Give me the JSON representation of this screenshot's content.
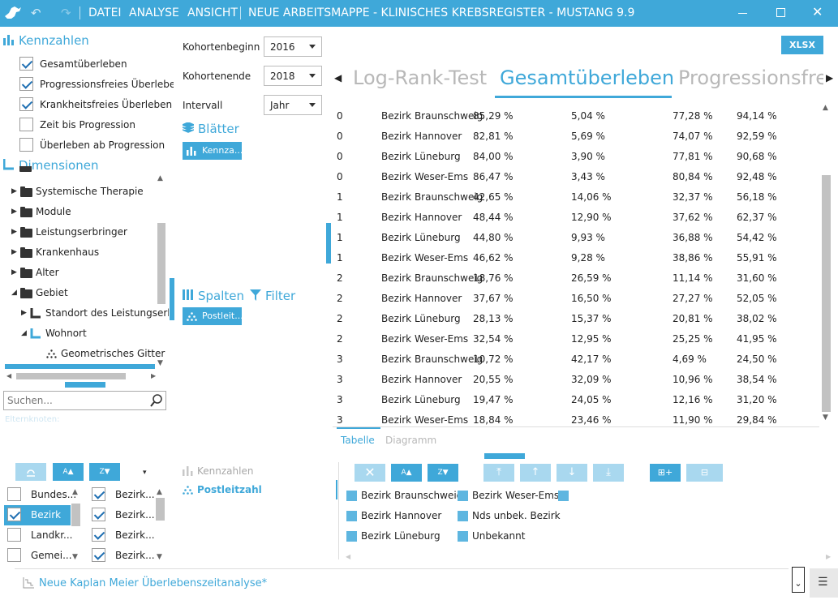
{
  "title_bar": {
    "menu": [
      "DATEI",
      "ANALYSE",
      "ANSICHT"
    ],
    "title": "NEUE ARBEITSMAPPE - KLINISCHES KREBSREGISTER - MUSTANG 9.9"
  },
  "kennzahlen": {
    "heading": "Kennzahlen",
    "items": [
      {
        "label": "Gesamtüberleben",
        "checked": true
      },
      {
        "label": "Progressionsfreies Überleben",
        "checked": true
      },
      {
        "label": "Krankheitsfreies Überleben",
        "checked": true
      },
      {
        "label": "Zeit bis Progression",
        "checked": false
      },
      {
        "label": "Überleben ab Progression",
        "checked": false
      }
    ]
  },
  "dimensionen": {
    "heading": "Dimensionen",
    "tree": [
      {
        "label": "Systemische Therapie",
        "level": 0,
        "icon": "folder-icon",
        "expanded": false
      },
      {
        "label": "Module",
        "level": 0,
        "icon": "folder-icon",
        "expanded": false
      },
      {
        "label": "Leistungserbringer",
        "level": 0,
        "icon": "folder-icon",
        "expanded": false
      },
      {
        "label": "Krankenhaus",
        "level": 0,
        "icon": "folder-icon",
        "expanded": false
      },
      {
        "label": "Alter",
        "level": 0,
        "icon": "folder-icon",
        "expanded": false
      },
      {
        "label": "Gebiet",
        "level": 0,
        "icon": "folder-icon",
        "expanded": true
      },
      {
        "label": "Standort des Leistungserb",
        "level": 1,
        "icon": "hierarchy-icon",
        "expanded": false
      },
      {
        "label": "Wohnort",
        "level": 1,
        "icon": "hierarchy-icon",
        "expanded": true
      },
      {
        "label": "Geometrisches Gitter",
        "level": 2,
        "icon": "grid-icon",
        "expanded": false
      }
    ]
  },
  "search": {
    "placeholder": "Suchen...",
    "elternknoten": "Elternknoten:"
  },
  "settings": {
    "kohortenbeginn_label": "Kohortenbeginn",
    "kohortenbeginn_value": "2016",
    "kohortenende_label": "Kohortenende",
    "kohortenende_value": "2018",
    "intervall_label": "Intervall",
    "intervall_value": "Jahr"
  },
  "blaetter": {
    "heading": "Blätter",
    "chip": "Kennza..."
  },
  "spalten": {
    "heading": "Spalten",
    "filter": "Filter",
    "chip": "Postleit..."
  },
  "export_button": "XLSX",
  "tabs": {
    "items": [
      "Log-Rank-Test",
      "Gesamtüberleben",
      "Progressionsfrei"
    ],
    "active": 1
  },
  "table": {
    "rows": [
      [
        "0",
        "Bezirk Braunschweig",
        "85,29 %",
        "5,04 %",
        "77,28 %",
        "94,14 %"
      ],
      [
        "0",
        "Bezirk Hannover",
        "82,81 %",
        "5,69 %",
        "74,07 %",
        "92,59 %"
      ],
      [
        "0",
        "Bezirk Lüneburg",
        "84,00 %",
        "3,90 %",
        "77,81 %",
        "90,68 %"
      ],
      [
        "0",
        "Bezirk Weser-Ems",
        "86,47 %",
        "3,43 %",
        "80,84 %",
        "92,48 %"
      ],
      [
        "1",
        "Bezirk Braunschweig",
        "42,65 %",
        "14,06 %",
        "32,37 %",
        "56,18 %"
      ],
      [
        "1",
        "Bezirk Hannover",
        "48,44 %",
        "12,90 %",
        "37,62 %",
        "62,37 %"
      ],
      [
        "1",
        "Bezirk Lüneburg",
        "44,80 %",
        "9,93 %",
        "36,88 %",
        "54,42 %"
      ],
      [
        "1",
        "Bezirk Weser-Ems",
        "46,62 %",
        "9,28 %",
        "38,86 %",
        "55,91 %"
      ],
      [
        "2",
        "Bezirk Braunschweig",
        "18,76 %",
        "26,59 %",
        "11,14 %",
        "31,60 %"
      ],
      [
        "2",
        "Bezirk Hannover",
        "37,67 %",
        "16,50 %",
        "27,27 %",
        "52,05 %"
      ],
      [
        "2",
        "Bezirk Lüneburg",
        "28,13 %",
        "15,37 %",
        "20,81 %",
        "38,02 %"
      ],
      [
        "2",
        "Bezirk Weser-Ems",
        "32,54 %",
        "12,95 %",
        "25,25 %",
        "41,95 %"
      ],
      [
        "3",
        "Bezirk Braunschweig",
        "10,72 %",
        "42,17 %",
        "4,69 %",
        "24,50 %"
      ],
      [
        "3",
        "Bezirk Hannover",
        "20,55 %",
        "32,09 %",
        "10,96 %",
        "38,54 %"
      ],
      [
        "3",
        "Bezirk Lüneburg",
        "19,47 %",
        "24,05 %",
        "12,16 %",
        "31,20 %"
      ],
      [
        "3",
        "Bezirk Weser-Ems",
        "18,84 %",
        "23,46 %",
        "11,90 %",
        "29,84 %"
      ]
    ]
  },
  "view_tabs": {
    "items": [
      "Tabelle",
      "Diagramm"
    ],
    "active": 0
  },
  "bottom_left": {
    "col1": [
      {
        "label": "Bundes...",
        "checked": false
      },
      {
        "label": "Bezirk",
        "checked": true
      },
      {
        "label": "Landkr...",
        "checked": false
      },
      {
        "label": "Gemei...",
        "checked": false
      }
    ],
    "col2": [
      {
        "label": "Bezirk...",
        "checked": true
      },
      {
        "label": "Bezirk...",
        "checked": true
      },
      {
        "label": "Bezirk...",
        "checked": true
      },
      {
        "label": "Bezirk...",
        "checked": true
      }
    ]
  },
  "bottom_mid": {
    "kennzahlen": "Kennzahlen",
    "postleitzahl": "Postleitzahl"
  },
  "legend": {
    "items": [
      "Bezirk Braunschweig",
      "Bezirk Weser-Ems",
      "",
      "Bezirk Hannover",
      "Nds unbek. Bezirk",
      "Bezirk Lüneburg",
      "Unbekannt"
    ]
  },
  "status_bar": {
    "text": "Neue Kaplan Meier Überlebenszeitanalyse*"
  },
  "colors": {
    "accent": "#3fa8d9"
  }
}
